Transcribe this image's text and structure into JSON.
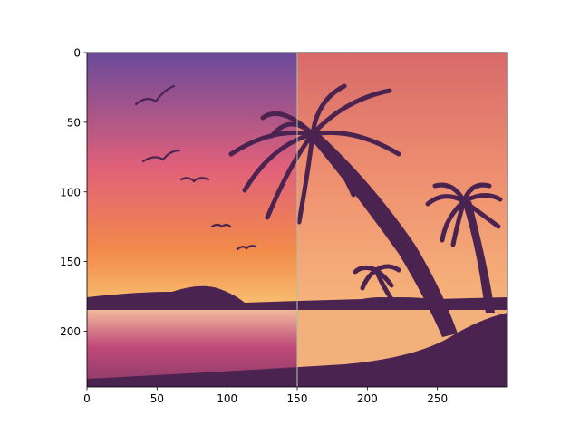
{
  "chart_data": {
    "type": "image",
    "title": "",
    "xlabel": "",
    "ylabel": "",
    "image_width": 300,
    "image_height": 240,
    "xlim": [
      0,
      300
    ],
    "ylim": [
      240,
      0
    ],
    "x_ticks": [
      {
        "value": 0,
        "label": "0"
      },
      {
        "value": 50,
        "label": "50"
      },
      {
        "value": 100,
        "label": "100"
      },
      {
        "value": 150,
        "label": "150"
      },
      {
        "value": 200,
        "label": "200"
      },
      {
        "value": 250,
        "label": "250"
      }
    ],
    "y_ticks": [
      {
        "value": 0,
        "label": "0"
      },
      {
        "value": 50,
        "label": "50"
      },
      {
        "value": 100,
        "label": "100"
      },
      {
        "value": 150,
        "label": "150"
      },
      {
        "value": 200,
        "label": "200"
      }
    ],
    "panel_split_x": 150,
    "colors": {
      "left_sky_top": "#6a4a9a",
      "left_sky_mid": "#e0607a",
      "left_sky_low": "#f28a4a",
      "left_horizon": "#f8c070",
      "left_water": "#c04a78",
      "right_sky_top": "#d86a6a",
      "right_sky_mid": "#ee9070",
      "right_sky_low": "#f6b47a",
      "right_water": "#f2b07a",
      "silhouette": "#4a2350",
      "divider": "#a8c4a8"
    }
  }
}
